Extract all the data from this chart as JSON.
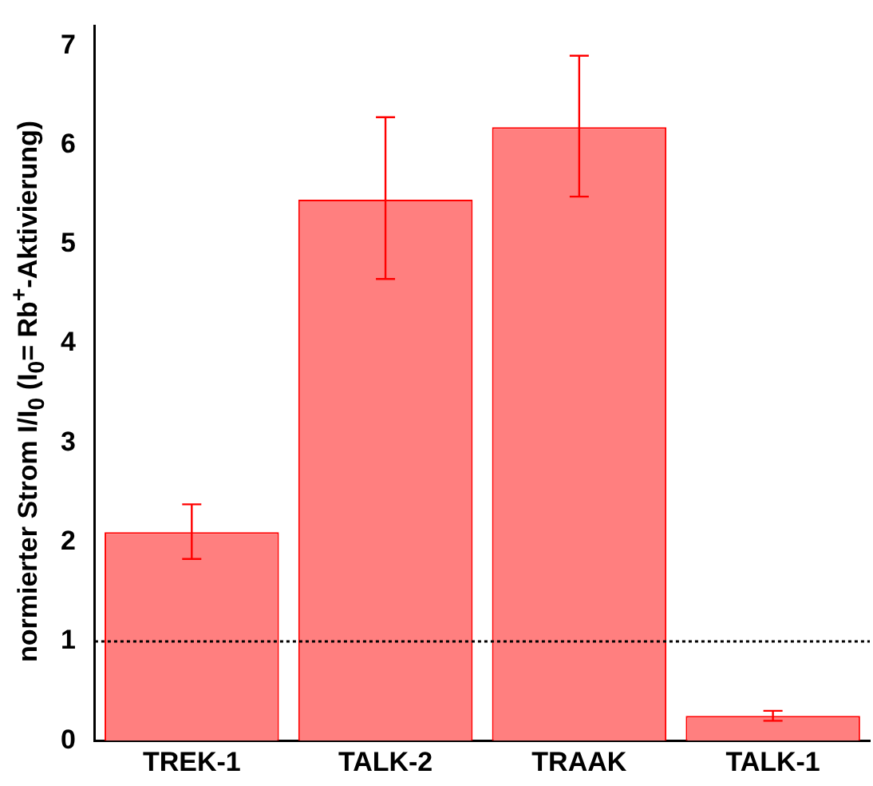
{
  "chart_data": {
    "type": "bar",
    "ylabel": "normierter Strom I/I$_{0}$ (I$_{0}$= Rb$^{+}$-Aktivierung)",
    "categories": [
      "TREK-1",
      "TALK-2",
      "TRAAK",
      "TALK-1"
    ],
    "values": [
      2.1,
      5.45,
      6.18,
      0.25
    ],
    "errors": [
      [
        1.83,
        2.38
      ],
      [
        4.65,
        6.28
      ],
      [
        5.48,
        6.9
      ],
      [
        0.2,
        0.3
      ]
    ],
    "color": "#ff7f7f",
    "ylim": [
      0,
      7.2
    ],
    "yticks": [
      0,
      1,
      2,
      3,
      4,
      5,
      6,
      7
    ],
    "ref_lines": [
      {
        "axis": "y",
        "value": 1,
        "line_style": "dotted",
        "color": "#000000"
      }
    ],
    "grid": false,
    "legend": false
  }
}
